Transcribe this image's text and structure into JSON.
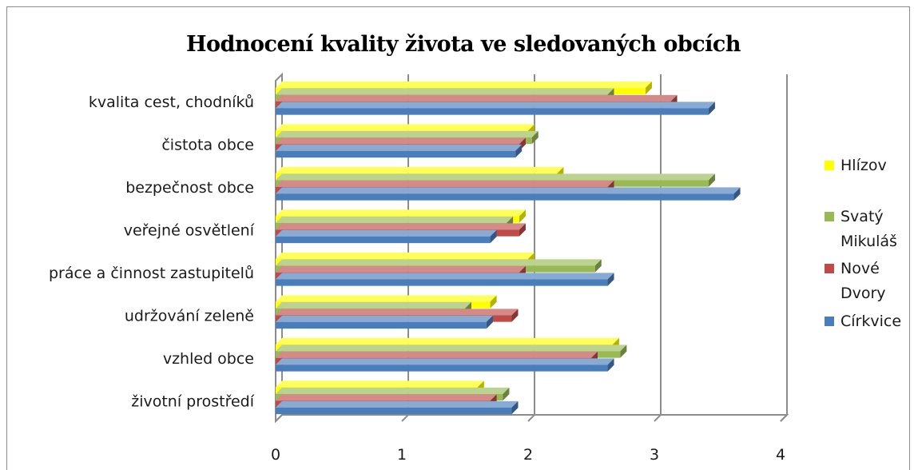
{
  "chart_data": {
    "type": "bar",
    "orientation": "horizontal",
    "title": "Hodnocení kvality života ve sledovaných obcích",
    "categories": [
      "kvalita cest, chodníků",
      "čistota obce",
      "bezpečnost obce",
      "veřejné osvětlení",
      "práce a činnost zastupitelů",
      "udržování zeleně",
      "vzhled obce",
      "životní prostředí"
    ],
    "series": [
      {
        "name": "Církvice",
        "color": "#4a7ebb",
        "values": [
          3.43,
          1.9,
          3.63,
          1.7,
          2.63,
          1.67,
          2.63,
          1.87
        ]
      },
      {
        "name": "Nové Dvory",
        "color": "#be4b48",
        "values": [
          3.13,
          1.93,
          2.63,
          1.93,
          1.93,
          1.87,
          2.5,
          1.7
        ]
      },
      {
        "name": "Svatý Mikuláš",
        "color": "#98b954",
        "values": [
          2.63,
          2.03,
          3.43,
          1.83,
          2.53,
          1.5,
          2.73,
          1.8
        ]
      },
      {
        "name": "Hlízov",
        "color": "#ffff00",
        "values": [
          2.93,
          2.0,
          2.23,
          1.93,
          2.0,
          1.7,
          2.67,
          1.6
        ]
      }
    ],
    "legend_display": [
      {
        "series": "Hlízov",
        "lines": [
          "Hlízov"
        ]
      },
      {
        "series": "Svatý Mikuláš",
        "lines": [
          "Svatý",
          "Mikuláš"
        ]
      },
      {
        "series": "Nové Dvory",
        "lines": [
          "Nové",
          "Dvory"
        ]
      },
      {
        "series": "Církvice",
        "lines": [
          "Církvice"
        ]
      }
    ],
    "x_ticks": [
      "0",
      "1",
      "2",
      "3",
      "4"
    ],
    "xlim": [
      0,
      4
    ],
    "grid": true,
    "legend_position": "right",
    "style": "3d-clustered-bar"
  }
}
